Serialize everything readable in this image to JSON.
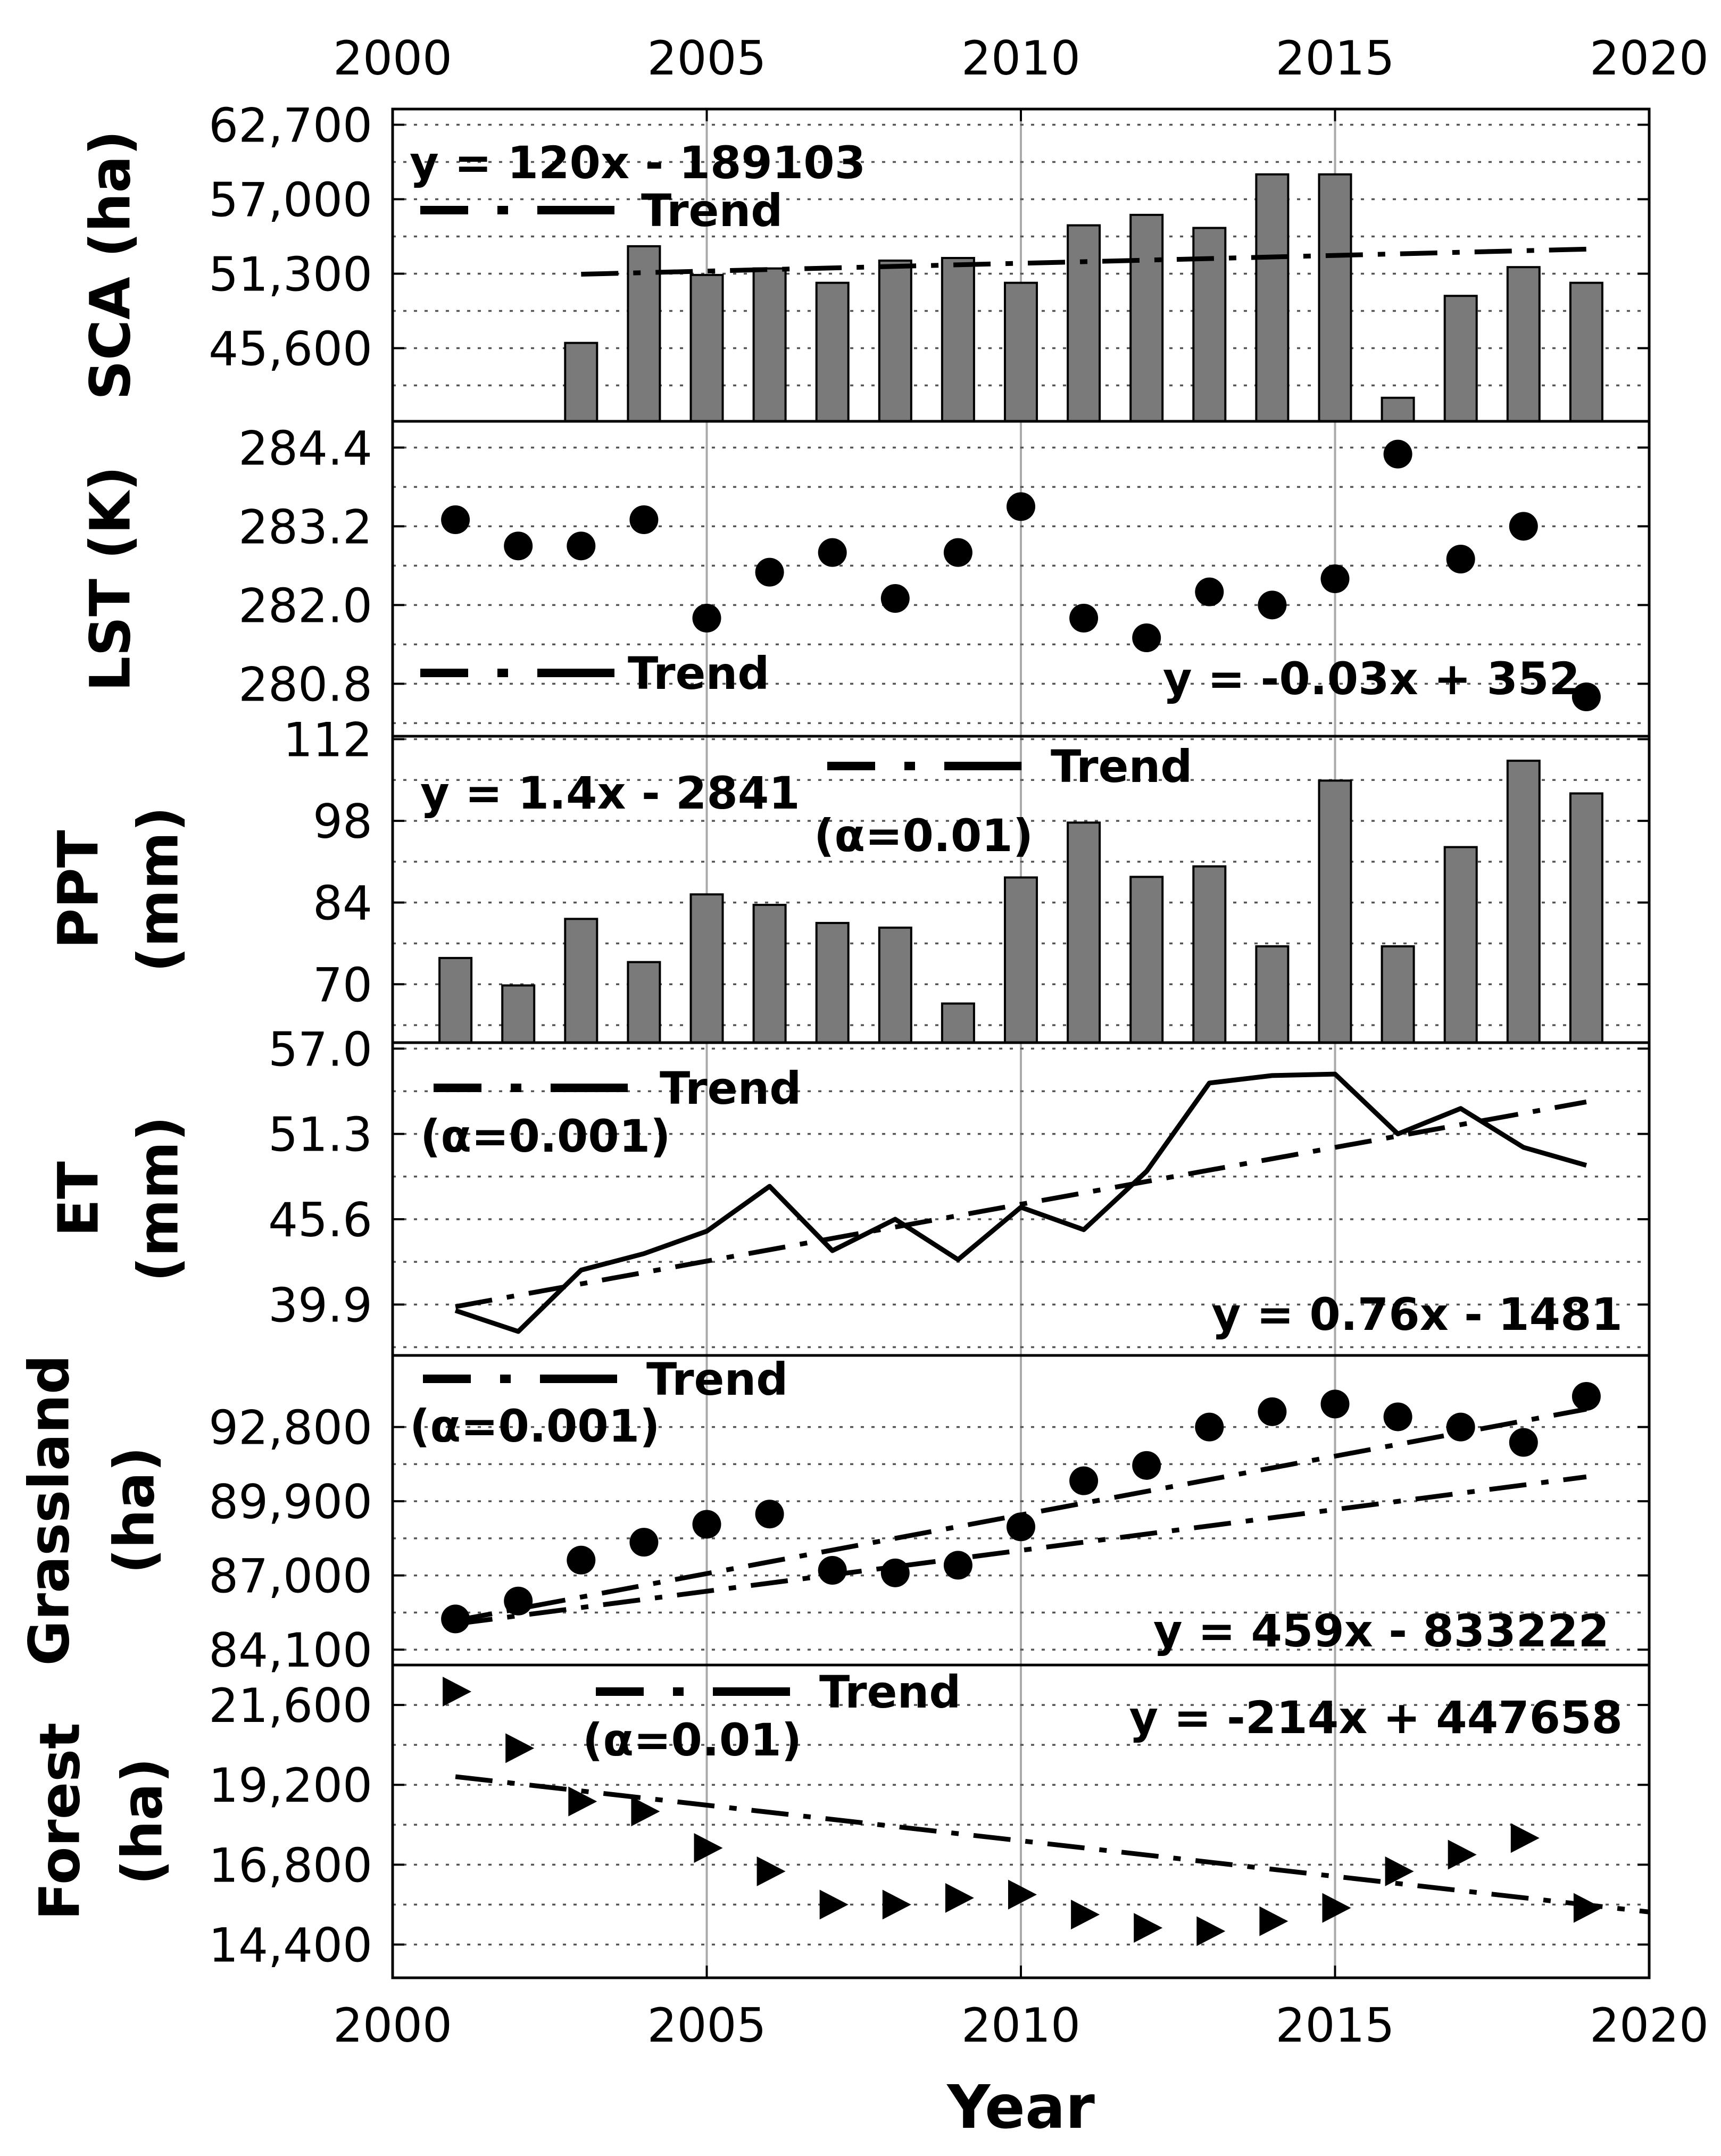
{
  "chart_data": {
    "type": "multi-panel",
    "x_axis": {
      "label": "Year",
      "ticks": [
        2000,
        2005,
        2010,
        2015,
        2020
      ],
      "range": [
        2000,
        2020
      ]
    },
    "trend_legend_label": "Trend",
    "panels": [
      {
        "id": "sca",
        "type": "bar",
        "ylabel_lines": [
          "SCA (ha)"
        ],
        "ylim": [
          40000,
          63900
        ],
        "yticks": [
          45600,
          51300,
          57000,
          62700
        ],
        "ytick_labels": [
          "45,600",
          "51,300",
          "57,000",
          "62,700"
        ],
        "years": [
          2003,
          2004,
          2005,
          2006,
          2007,
          2008,
          2009,
          2010,
          2011,
          2012,
          2013,
          2014,
          2015,
          2016,
          2017,
          2018,
          2019
        ],
        "values": [
          46000,
          53400,
          51200,
          51700,
          50600,
          52300,
          52500,
          50600,
          55000,
          55800,
          54800,
          58900,
          58900,
          41800,
          49600,
          51800,
          50600
        ],
        "trend": {
          "equation": "y = 120x - 189103",
          "slope": 120,
          "intercept": -189103,
          "x_range": [
            2003,
            2019
          ]
        },
        "alpha": ""
      },
      {
        "id": "lst",
        "type": "scatter",
        "marker": "circle",
        "ylabel_lines": [
          "LST (K)"
        ],
        "ylim": [
          280.0,
          284.8
        ],
        "yticks": [
          280.8,
          282.0,
          283.2,
          284.4
        ],
        "ytick_labels": [
          "280.8",
          "282.0",
          "283.2",
          "284.4"
        ],
        "years": [
          2001,
          2002,
          2003,
          2004,
          2005,
          2006,
          2007,
          2008,
          2009,
          2010,
          2011,
          2012,
          2013,
          2014,
          2015,
          2016,
          2017,
          2018,
          2019
        ],
        "values": [
          283.3,
          282.9,
          282.9,
          283.3,
          281.8,
          282.5,
          282.8,
          282.1,
          282.8,
          283.5,
          281.8,
          281.5,
          282.2,
          282.0,
          282.4,
          284.3,
          282.7,
          283.2,
          280.6
        ],
        "trend": {
          "equation": "y = -0.03x + 352",
          "slope": -0.03,
          "intercept": 352,
          "x_range": [
            2001,
            2019
          ]
        },
        "alpha": ""
      },
      {
        "id": "ppt",
        "type": "bar",
        "ylabel_lines": [
          "PPT",
          "(mm)"
        ],
        "ylim": [
          60,
          112.5
        ],
        "yticks": [
          70,
          84,
          98,
          112
        ],
        "ytick_labels": [
          "70",
          "84",
          "98",
          "112"
        ],
        "years": [
          2001,
          2002,
          2003,
          2004,
          2005,
          2006,
          2007,
          2008,
          2009,
          2010,
          2011,
          2012,
          2013,
          2014,
          2015,
          2016,
          2017,
          2018,
          2019
        ],
        "values": [
          74.5,
          69.8,
          81.2,
          73.8,
          85.4,
          83.6,
          80.5,
          79.7,
          66.7,
          88.3,
          97.7,
          88.4,
          90.2,
          76.5,
          104.9,
          76.5,
          93.5,
          108.3,
          102.7
        ],
        "trend": {
          "equation": "y = 1.4x - 2841",
          "slope": 1.4,
          "intercept": -2841,
          "x_range": [
            2001,
            2019
          ]
        },
        "alpha": "(α=0.01)"
      },
      {
        "id": "et",
        "type": "line",
        "ylabel_lines": [
          "ET",
          "(mm)"
        ],
        "ylim": [
          36.5,
          57.4
        ],
        "yticks": [
          39.9,
          45.6,
          51.3,
          57.0
        ],
        "ytick_labels": [
          "39.9",
          "45.6",
          "51.3",
          "57.0"
        ],
        "years": [
          2001,
          2002,
          2003,
          2004,
          2005,
          2006,
          2007,
          2008,
          2009,
          2010,
          2011,
          2012,
          2013,
          2014,
          2015,
          2016,
          2017,
          2018,
          2019
        ],
        "values": [
          39.5,
          38.1,
          42.2,
          43.3,
          44.8,
          47.8,
          43.5,
          45.6,
          42.9,
          46.4,
          44.9,
          48.8,
          54.7,
          55.2,
          55.3,
          51.3,
          53.0,
          50.4,
          49.2
        ],
        "trend": {
          "equation": "y = 0.76x - 1481",
          "slope": 0.76,
          "intercept": -1481,
          "x_range": [
            2001,
            2019
          ]
        },
        "alpha": "(α=0.001)"
      },
      {
        "id": "grassland",
        "type": "scatter",
        "marker": "circle",
        "ylabel_lines": [
          "Grassland",
          "(ha)"
        ],
        "ylim": [
          83500,
          95600
        ],
        "yticks": [
          84100,
          87000,
          89900,
          92800
        ],
        "ytick_labels": [
          "84,100",
          "87,000",
          "89,900",
          "92,800"
        ],
        "years": [
          2001,
          2002,
          2003,
          2004,
          2005,
          2006,
          2007,
          2008,
          2009,
          2010,
          2011,
          2012,
          2013,
          2014,
          2015,
          2016,
          2017,
          2018,
          2019
        ],
        "values": [
          85300,
          86000,
          87600,
          88300,
          89000,
          89400,
          87200,
          87100,
          87400,
          88900,
          90700,
          91300,
          92800,
          93400,
          93700,
          93200,
          92800,
          92200,
          94000
        ],
        "trend": {
          "equation": "y = 459x - 833222",
          "slope": 459,
          "intercept": -833222,
          "x_range": [
            2001,
            2019
          ]
        },
        "alpha": "(α=0.001)"
      },
      {
        "id": "forest",
        "type": "scatter",
        "marker": "triangle-right",
        "ylabel_lines": [
          "Forest",
          "(ha)"
        ],
        "ylim": [
          13400,
          22800
        ],
        "yticks": [
          14400,
          16800,
          19200,
          21600
        ],
        "ytick_labels": [
          "14,400",
          "16,800",
          "19,200",
          "21,600"
        ],
        "years": [
          2001,
          2002,
          2003,
          2004,
          2005,
          2006,
          2007,
          2008,
          2009,
          2010,
          2011,
          2012,
          2013,
          2014,
          2015,
          2016,
          2017,
          2018,
          2019
        ],
        "values": [
          22000,
          20300,
          18700,
          18400,
          17300,
          16600,
          15600,
          15600,
          15800,
          15900,
          15300,
          14900,
          14800,
          15100,
          15500,
          16600,
          17100,
          17600,
          15500
        ],
        "trend": {
          "equation": "y = -214x + 447658",
          "slope": -214,
          "intercept": 447658,
          "x_range": [
            2001,
            2020
          ]
        },
        "alpha": "(α=0.01)"
      }
    ]
  }
}
